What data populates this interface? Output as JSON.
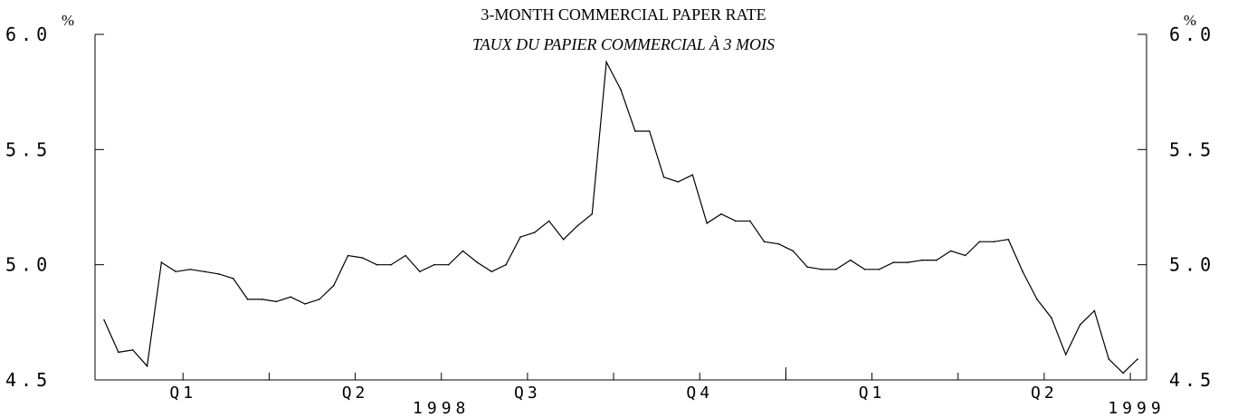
{
  "chart_data": {
    "type": "line",
    "title": "3-MONTH COMMERCIAL PAPER RATE",
    "subtitle": "TAUX DU PAPIER COMMERCIAL À 3 MOIS",
    "y_unit_left": "%",
    "y_unit_right": "%",
    "ylim": [
      4.5,
      6.0
    ],
    "yticks": [
      "6.0",
      "5.5",
      "5.0",
      "4.5"
    ],
    "x_quarter_labels": [
      "Q1",
      "Q2",
      "Q3",
      "Q4",
      "Q1",
      "Q2"
    ],
    "x_year_labels": [
      "1998",
      "1999"
    ],
    "grid": false,
    "legend": "none",
    "series": [
      {
        "values": [
          4.76,
          4.62,
          4.63,
          4.56,
          5.01,
          4.97,
          4.98,
          4.97,
          4.96,
          4.94,
          4.85,
          4.85,
          4.84,
          4.86,
          4.83,
          4.85,
          4.91,
          5.04,
          5.03,
          5.0,
          5.0,
          5.04,
          4.97,
          5.0,
          5.0,
          5.06,
          5.01,
          4.97,
          5.0,
          5.12,
          5.14,
          5.19,
          5.11,
          5.17,
          5.22,
          5.88,
          5.76,
          5.58,
          5.58,
          5.38,
          5.36,
          5.39,
          5.18,
          5.22,
          5.19,
          5.19,
          5.1,
          5.09,
          5.06,
          4.99,
          4.98,
          4.98,
          5.02,
          4.98,
          4.98,
          5.01,
          5.01,
          5.02,
          5.02,
          5.06,
          5.04,
          5.1,
          5.1,
          5.11,
          4.97,
          4.85,
          4.77,
          4.61,
          4.74,
          4.8,
          4.59,
          4.53,
          4.59
        ]
      }
    ]
  }
}
